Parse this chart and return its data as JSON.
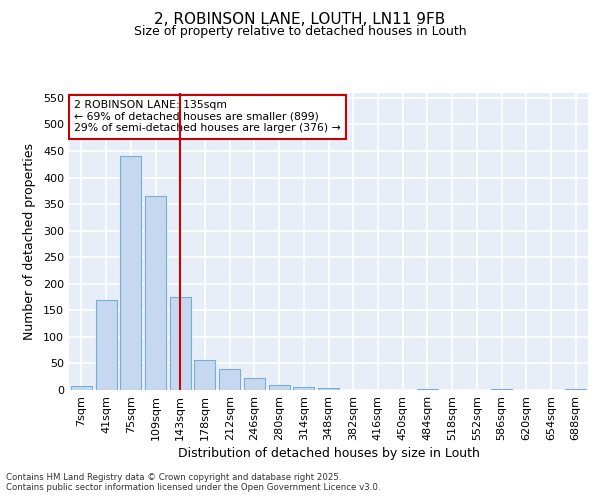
{
  "title_line1": "2, ROBINSON LANE, LOUTH, LN11 9FB",
  "title_line2": "Size of property relative to detached houses in Louth",
  "categories": [
    "7sqm",
    "41sqm",
    "75sqm",
    "109sqm",
    "143sqm",
    "178sqm",
    "212sqm",
    "246sqm",
    "280sqm",
    "314sqm",
    "348sqm",
    "382sqm",
    "416sqm",
    "450sqm",
    "484sqm",
    "518sqm",
    "552sqm",
    "586sqm",
    "620sqm",
    "654sqm",
    "688sqm"
  ],
  "values": [
    7,
    170,
    440,
    365,
    175,
    57,
    40,
    22,
    10,
    5,
    3,
    0,
    0,
    0,
    1,
    0,
    0,
    1,
    0,
    0,
    1
  ],
  "bar_color": "#c5d8f0",
  "bar_edgecolor": "#7aadd4",
  "vline_x_index": 4,
  "vline_color": "#cc0000",
  "annotation_text": "2 ROBINSON LANE: 135sqm\n← 69% of detached houses are smaller (899)\n29% of semi-detached houses are larger (376) →",
  "annotation_box_facecolor": "#ffffff",
  "annotation_box_edgecolor": "#cc0000",
  "xlabel": "Distribution of detached houses by size in Louth",
  "ylabel": "Number of detached properties",
  "ylim": [
    0,
    560
  ],
  "yticks": [
    0,
    50,
    100,
    150,
    200,
    250,
    300,
    350,
    400,
    450,
    500,
    550
  ],
  "plot_bg_color": "#e8eef8",
  "fig_bg_color": "#ffffff",
  "grid_color": "#ffffff",
  "footer_line1": "Contains HM Land Registry data © Crown copyright and database right 2025.",
  "footer_line2": "Contains public sector information licensed under the Open Government Licence v3.0."
}
